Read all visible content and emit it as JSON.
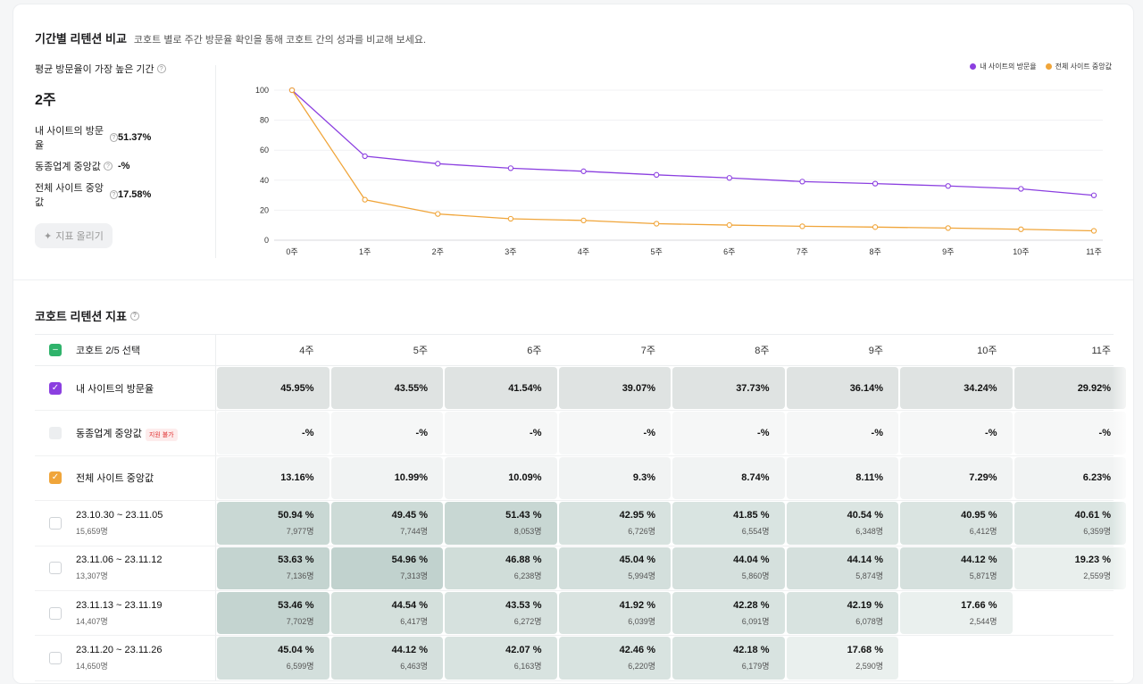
{
  "header": {
    "title": "기간별 리텐션 비교",
    "subtitle": "코호트 별로 주간 방문율 확인을 통해 코호트 간의 성과를 비교해 보세요."
  },
  "stats": {
    "peak_label": "평균 방문율이 가장 높은 기간",
    "peak_value": "2주",
    "rows": [
      {
        "label": "내 사이트의 방문율",
        "value": "51.37%"
      },
      {
        "label": "동종업계 중앙값",
        "value": "-%"
      },
      {
        "label": "전체 사이트 중앙값",
        "value": "17.58%"
      }
    ],
    "pin_button": "지표 올리기"
  },
  "colors": {
    "purple": "#8b3fe0",
    "orange": "#f0a53a",
    "green": "#2fb36b",
    "grid": "#f0f1f3"
  },
  "chart_data": {
    "type": "line",
    "categories": [
      "0주",
      "1주",
      "2주",
      "3주",
      "4주",
      "5주",
      "6주",
      "7주",
      "8주",
      "9주",
      "10주",
      "11주"
    ],
    "ylim": [
      0,
      100
    ],
    "yticks": [
      0,
      20,
      40,
      60,
      80,
      100
    ],
    "series": [
      {
        "name": "내 사이트의 방문율",
        "color": "#8b3fe0",
        "values": [
          100,
          56,
          51,
          48,
          45.95,
          43.55,
          41.54,
          39.07,
          37.73,
          36.14,
          34.24,
          29.92
        ]
      },
      {
        "name": "전체 사이트 중앙값",
        "color": "#f0a53a",
        "values": [
          100,
          27,
          17.5,
          14.3,
          13.16,
          10.99,
          10.09,
          9.3,
          8.74,
          8.11,
          7.29,
          6.23
        ]
      }
    ]
  },
  "table": {
    "title": "코호트 리텐션 지표",
    "select_label": "코호트 2/5 선택",
    "columns": [
      "4주",
      "5주",
      "6주",
      "7주",
      "8주",
      "9주",
      "10주",
      "11주"
    ],
    "fixed_rows": [
      {
        "label": "내 사이트의 방문율",
        "check": "purple",
        "badge": "",
        "bg": "#dfe3e2",
        "values": [
          "45.95%",
          "43.55%",
          "41.54%",
          "39.07%",
          "37.73%",
          "36.14%",
          "34.24%",
          "29.92%"
        ]
      },
      {
        "label": "동종업계 중앙값",
        "check": "disabled",
        "badge": "지원 불가",
        "bg": "#f6f7f7",
        "values": [
          "-%",
          "-%",
          "-%",
          "-%",
          "-%",
          "-%",
          "-%",
          "-%"
        ]
      },
      {
        "label": "전체 사이트 중앙값",
        "check": "orange",
        "badge": "",
        "bg": "#f1f3f3",
        "values": [
          "13.16%",
          "10.99%",
          "10.09%",
          "9.3%",
          "8.74%",
          "8.11%",
          "7.29%",
          "6.23%"
        ]
      }
    ],
    "cohorts": [
      {
        "label": "23.10.30 ~ 23.11.05",
        "size": "15,659명",
        "cells": [
          {
            "pct": "50.94 %",
            "cnt": "7,977명",
            "bg": "#c9d8d4"
          },
          {
            "pct": "49.45 %",
            "cnt": "7,744명",
            "bg": "#cddbd7"
          },
          {
            "pct": "51.43 %",
            "cnt": "8,053명",
            "bg": "#c8d7d3"
          },
          {
            "pct": "42.95 %",
            "cnt": "6,726명",
            "bg": "#d7e2df"
          },
          {
            "pct": "41.85 %",
            "cnt": "6,554명",
            "bg": "#d9e4e1"
          },
          {
            "pct": "40.54 %",
            "cnt": "6,348명",
            "bg": "#dbe5e2"
          },
          {
            "pct": "40.95 %",
            "cnt": "6,412명",
            "bg": "#dae4e1"
          },
          {
            "pct": "40.61 %",
            "cnt": "6,359명",
            "bg": "#dbe5e2"
          }
        ]
      },
      {
        "label": "23.11.06 ~ 23.11.12",
        "size": "13,307명",
        "cells": [
          {
            "pct": "53.63 %",
            "cnt": "7,136명",
            "bg": "#c4d4d0"
          },
          {
            "pct": "54.96 %",
            "cnt": "7,313명",
            "bg": "#c1d2ce"
          },
          {
            "pct": "46.88 %",
            "cnt": "6,238명",
            "bg": "#d0ddd9"
          },
          {
            "pct": "45.04 %",
            "cnt": "5,994명",
            "bg": "#d3dfdc"
          },
          {
            "pct": "44.04 %",
            "cnt": "5,860명",
            "bg": "#d5e0dd"
          },
          {
            "pct": "44.14 %",
            "cnt": "5,874명",
            "bg": "#d5e0dd"
          },
          {
            "pct": "44.12 %",
            "cnt": "5,871명",
            "bg": "#d5e0dd"
          },
          {
            "pct": "19.23 %",
            "cnt": "2,559명",
            "bg": "#e9efed"
          }
        ]
      },
      {
        "label": "23.11.13 ~ 23.11.19",
        "size": "14,407명",
        "cells": [
          {
            "pct": "53.46 %",
            "cnt": "7,702명",
            "bg": "#c4d4d0"
          },
          {
            "pct": "44.54 %",
            "cnt": "6,417명",
            "bg": "#d4e0dc"
          },
          {
            "pct": "43.53 %",
            "cnt": "6,272명",
            "bg": "#d6e1de"
          },
          {
            "pct": "41.92 %",
            "cnt": "6,039명",
            "bg": "#d9e3e0"
          },
          {
            "pct": "42.28 %",
            "cnt": "6,091명",
            "bg": "#d8e3e0"
          },
          {
            "pct": "42.19 %",
            "cnt": "6,078명",
            "bg": "#d8e3e0"
          },
          {
            "pct": "17.66 %",
            "cnt": "2,544명",
            "bg": "#eaf0ee"
          }
        ]
      },
      {
        "label": "23.11.20 ~ 23.11.26",
        "size": "14,650명",
        "cells": [
          {
            "pct": "45.04 %",
            "cnt": "6,599명",
            "bg": "#d3dfdc"
          },
          {
            "pct": "44.12 %",
            "cnt": "6,463명",
            "bg": "#d5e0dd"
          },
          {
            "pct": "42.07 %",
            "cnt": "6,163명",
            "bg": "#d8e3e0"
          },
          {
            "pct": "42.46 %",
            "cnt": "6,220명",
            "bg": "#d8e3e0"
          },
          {
            "pct": "42.18 %",
            "cnt": "6,179명",
            "bg": "#d8e3e0"
          },
          {
            "pct": "17.68 %",
            "cnt": "2,590명",
            "bg": "#eaf0ee"
          }
        ]
      }
    ]
  }
}
